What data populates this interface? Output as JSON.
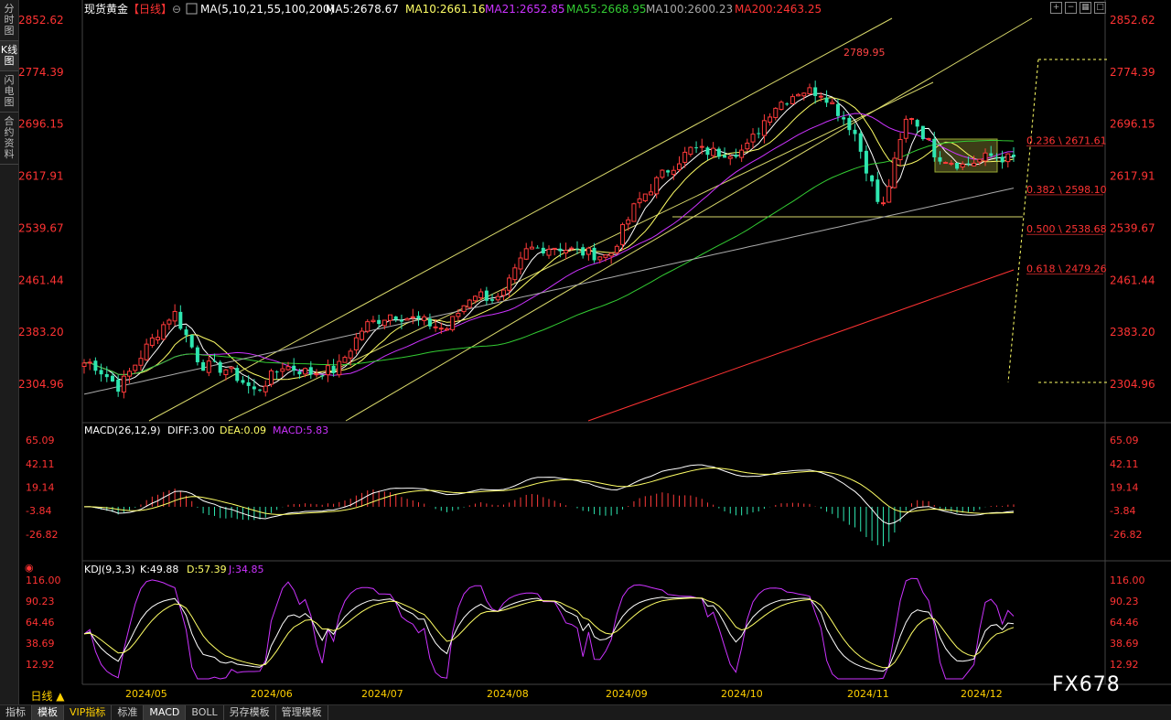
{
  "sidebar": {
    "items": [
      {
        "label": "分时图",
        "active": false
      },
      {
        "label": "K线图",
        "active": true
      },
      {
        "label": "闪电图",
        "active": false
      },
      {
        "label": "合约资料",
        "active": false
      }
    ]
  },
  "main_panel": {
    "title": "现货黄金",
    "period": "【日线】",
    "ma_label": "MA(5,10,21,55,100,200)",
    "ma_values": [
      {
        "label": "MA5:2678.67",
        "color": "#ffffff"
      },
      {
        "label": "MA10:2661.16",
        "color": "#ffff66"
      },
      {
        "label": "MA21:2652.85",
        "color": "#cc33ff"
      },
      {
        "label": "MA55:2668.95",
        "color": "#33cc33"
      },
      {
        "label": "MA100:2600.23",
        "color": "#aaaaaa"
      },
      {
        "label": "MA200:2463.25",
        "color": "#ff3333"
      }
    ],
    "high_label": "2789.95"
  },
  "fib_levels": [
    {
      "label": "0.236 \\ 2671.61",
      "value": 2671.61
    },
    {
      "label": "0.382 \\ 2598.10",
      "value": 2598.1
    },
    {
      "label": "0.500 \\ 2538.68",
      "value": 2538.68
    },
    {
      "label": "0.618 \\ 2479.26",
      "value": 2479.26
    }
  ],
  "macd_panel": {
    "title": "MACD(26,12,9)",
    "diff": "DIFF:3.00",
    "dea": "DEA:0.09",
    "macd": "MACD:5.83",
    "ticks": [
      "65.09",
      "42.11",
      "19.14",
      "-3.84",
      "-26.82"
    ]
  },
  "kdj_panel": {
    "title": "KDJ(9,3,3)",
    "k": "K:49.88",
    "d": "D:57.39",
    "j": "J:34.85",
    "ticks": [
      "116.00",
      "90.23",
      "64.46",
      "38.69",
      "12.92"
    ]
  },
  "x_labels": [
    "2024/05",
    "2024/06",
    "2024/07",
    "2024/08",
    "2024/09",
    "2024/10",
    "2024/11",
    "2024/12"
  ],
  "period_button": "日线",
  "bottom_tabs": [
    "指标",
    "模板",
    "VIP指标",
    "标准",
    "MACD",
    "BOLL",
    "另存模板",
    "管理模板"
  ],
  "watermark": "FX678",
  "chart_data": {
    "type": "candlestick",
    "title": "现货黄金",
    "y_ticks": [
      2852.62,
      2774.39,
      2696.15,
      2617.91,
      2539.67,
      2461.44,
      2383.2,
      2304.96
    ],
    "ylim": [
      2230,
      2860
    ],
    "x_categories": [
      "2024/05",
      "2024/06",
      "2024/07",
      "2024/08",
      "2024/09",
      "2024/10",
      "2024/11",
      "2024/12"
    ],
    "close_path": [
      [
        "2024/04/26",
        2337
      ],
      [
        "2024/05/03",
        2300
      ],
      [
        "2024/05/10",
        2360
      ],
      [
        "2024/05/17",
        2415
      ],
      [
        "2024/05/24",
        2334
      ],
      [
        "2024/05/31",
        2327
      ],
      [
        "2024/06/07",
        2293
      ],
      [
        "2024/06/14",
        2333
      ],
      [
        "2024/06/21",
        2322
      ],
      [
        "2024/06/28",
        2327
      ],
      [
        "2024/07/05",
        2392
      ],
      [
        "2024/07/12",
        2411
      ],
      [
        "2024/07/19",
        2401
      ],
      [
        "2024/07/26",
        2387
      ],
      [
        "2024/08/02",
        2443
      ],
      [
        "2024/08/09",
        2431
      ],
      [
        "2024/08/16",
        2508
      ],
      [
        "2024/08/23",
        2512
      ],
      [
        "2024/08/30",
        2503
      ],
      [
        "2024/09/06",
        2497
      ],
      [
        "2024/09/13",
        2577
      ],
      [
        "2024/09/20",
        2622
      ],
      [
        "2024/09/27",
        2658
      ],
      [
        "2024/10/04",
        2653
      ],
      [
        "2024/10/11",
        2657
      ],
      [
        "2024/10/18",
        2721
      ],
      [
        "2024/10/25",
        2747
      ],
      [
        "2024/10/31",
        2744
      ],
      [
        "2024/11/08",
        2685
      ],
      [
        "2024/11/15",
        2563
      ],
      [
        "2024/11/22",
        2716
      ],
      [
        "2024/11/29",
        2650
      ],
      [
        "2024/12/06",
        2634
      ],
      [
        "2024/12/13",
        2648
      ],
      [
        "2024/12/18",
        2644
      ]
    ],
    "high": 2789.95,
    "fib_levels": [
      2671.61,
      2598.1,
      2538.68,
      2479.26
    ]
  }
}
